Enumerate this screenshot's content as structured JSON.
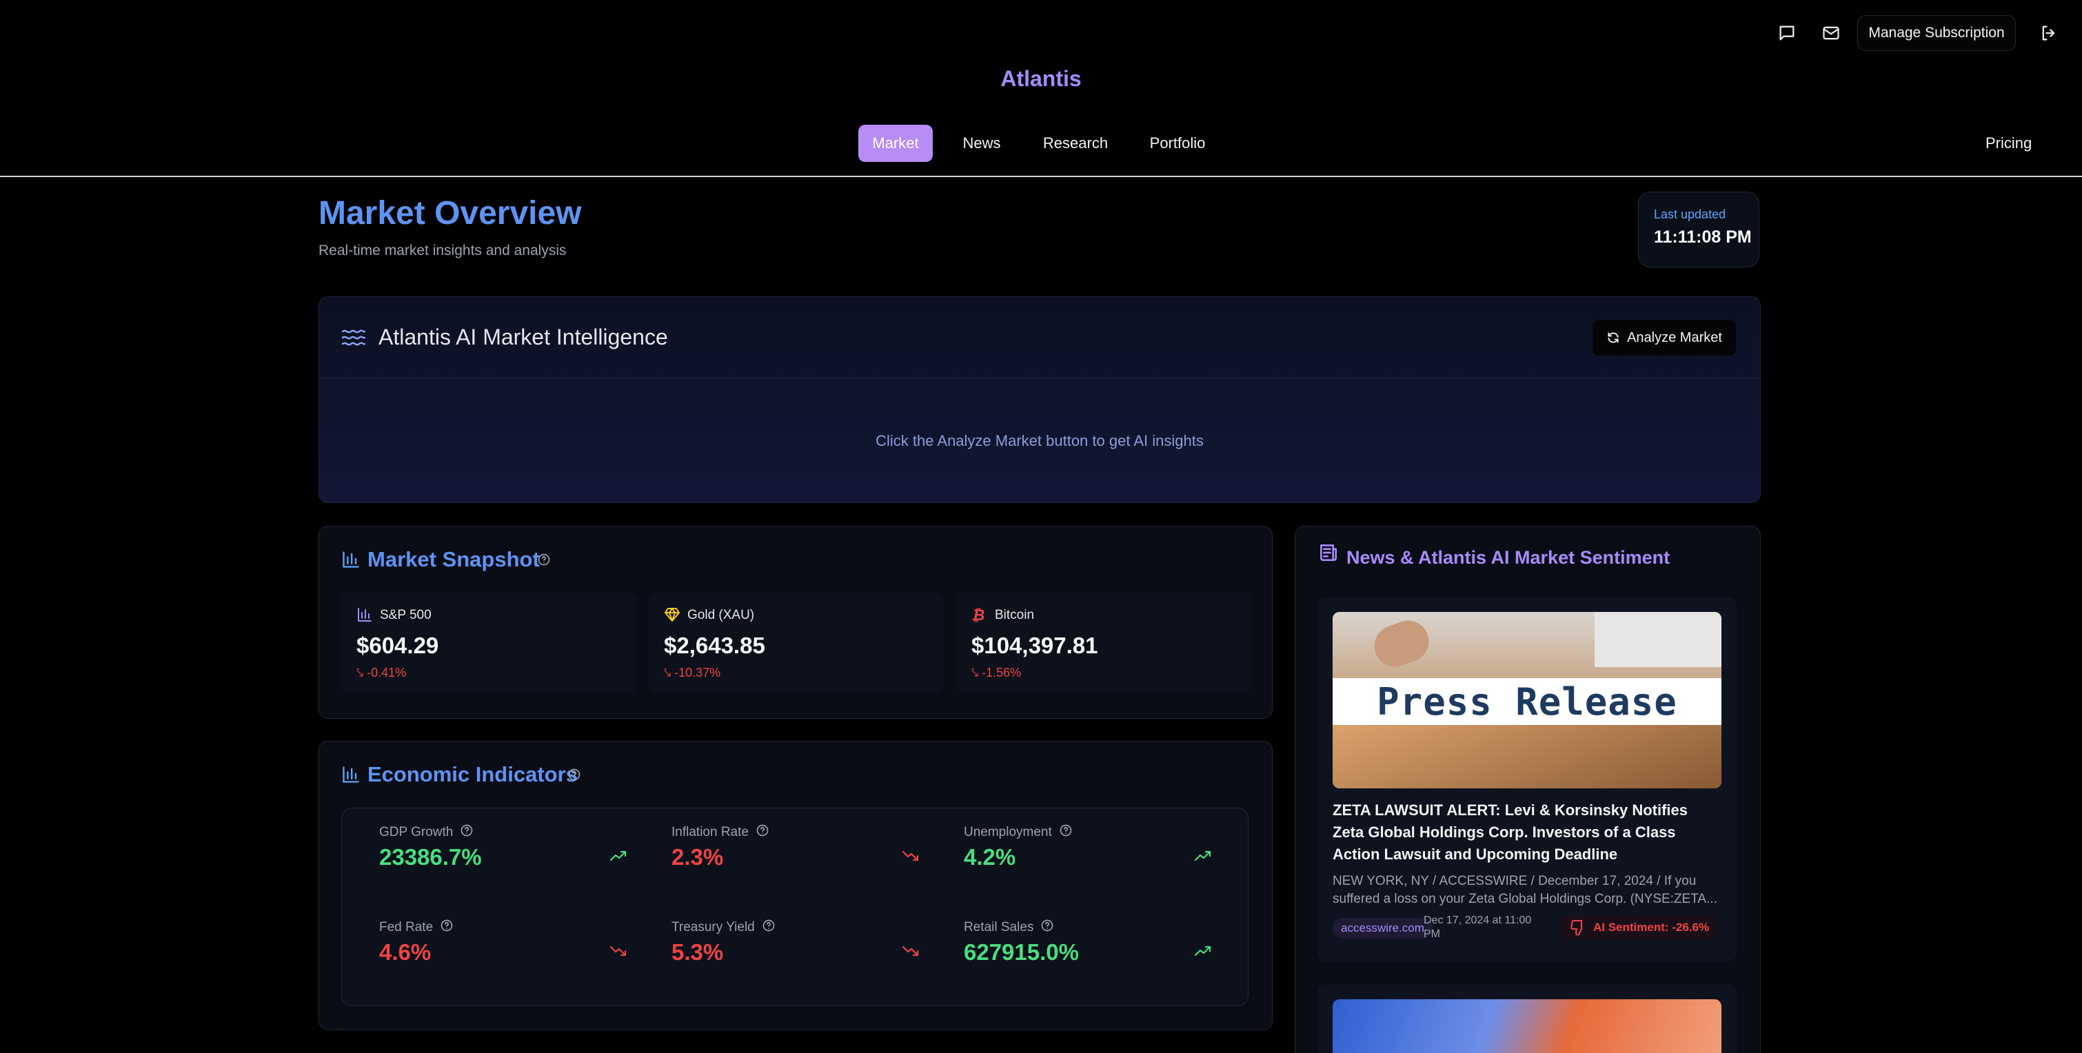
{
  "header": {
    "brand": "Atlantis",
    "manage_subscription": "Manage Subscription",
    "icons": [
      "message-icon",
      "mail-icon",
      "logout-icon"
    ]
  },
  "nav": {
    "items": [
      {
        "label": "Market",
        "active": true
      },
      {
        "label": "News",
        "active": false
      },
      {
        "label": "Research",
        "active": false
      },
      {
        "label": "Portfolio",
        "active": false
      }
    ],
    "pricing": "Pricing"
  },
  "page": {
    "title": "Market Overview",
    "subtitle": "Real-time market insights and analysis",
    "last_updated_label": "Last updated",
    "last_updated_value": "11:11:08 PM"
  },
  "ai_panel": {
    "title": "Atlantis AI Market Intelligence",
    "button": "Analyze Market",
    "hint": "Click the Analyze Market button to get AI insights"
  },
  "snapshot": {
    "title": "Market Snapshot",
    "items": [
      {
        "name": "S&P 500",
        "price": "$604.29",
        "change": "-0.41%",
        "icon": "bar-chart-icon"
      },
      {
        "name": "Gold (XAU)",
        "price": "$2,643.85",
        "change": "-10.37%",
        "icon": "gem-icon"
      },
      {
        "name": "Bitcoin",
        "price": "$104,397.81",
        "change": "-1.56%",
        "icon": "bitcoin-icon"
      }
    ]
  },
  "indicators": {
    "title": "Economic Indicators",
    "items": [
      {
        "label": "GDP Growth",
        "value": "23386.7%",
        "trend": "up"
      },
      {
        "label": "Inflation Rate",
        "value": "2.3%",
        "trend": "down"
      },
      {
        "label": "Unemployment",
        "value": "4.2%",
        "trend": "up"
      },
      {
        "label": "Fed Rate",
        "value": "4.6%",
        "trend": "down"
      },
      {
        "label": "Treasury Yield",
        "value": "5.3%",
        "trend": "down"
      },
      {
        "label": "Retail Sales",
        "value": "627915.0%",
        "trend": "up"
      }
    ]
  },
  "news": {
    "title": "News & Atlantis AI Market Sentiment",
    "articles": [
      {
        "image_text": "Press Release",
        "title": "ZETA LAWSUIT ALERT: Levi & Korsinsky Notifies Zeta Global Holdings Corp. Investors of a Class Action Lawsuit and Upcoming Deadline",
        "description": "NEW YORK, NY / ACCESSWIRE / December 17, 2024 / If you suffered a loss on your Zeta Global Holdings Corp. (NYSE:ZETA...",
        "source": "accesswire.com",
        "date": "Dec 17, 2024 at 11:00 PM",
        "sentiment": "AI Sentiment: -26.6%"
      }
    ]
  }
}
